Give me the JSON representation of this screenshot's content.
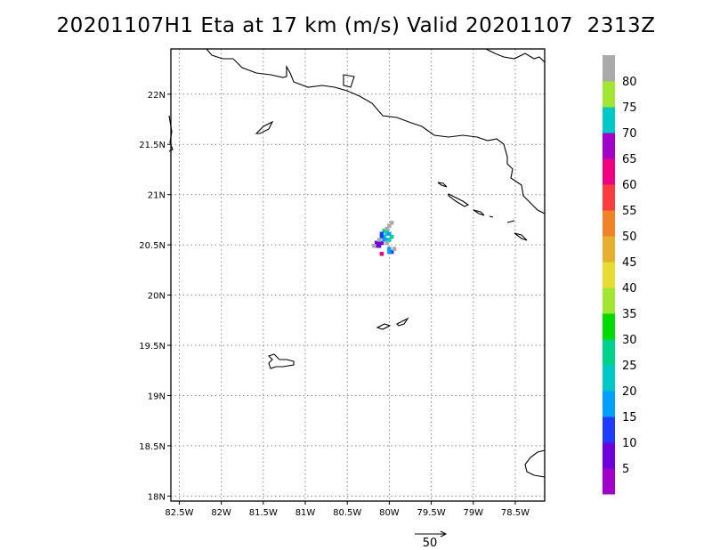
{
  "title": "20201107H1 Eta at 17 km (m/s) Valid 20201107  2313Z",
  "map": {
    "lon_range": [
      -82.6,
      -78.15
    ],
    "lat_range": [
      17.95,
      22.45
    ],
    "lon_ticks": [
      {
        "value": -82.5,
        "label": "82.5W"
      },
      {
        "value": -82.0,
        "label": "82W"
      },
      {
        "value": -81.5,
        "label": "81.5W"
      },
      {
        "value": -81.0,
        "label": "81W"
      },
      {
        "value": -80.5,
        "label": "80.5W"
      },
      {
        "value": -80.0,
        "label": "80W"
      },
      {
        "value": -79.5,
        "label": "79.5W"
      },
      {
        "value": -79.0,
        "label": "79W"
      },
      {
        "value": -78.5,
        "label": "78.5W"
      }
    ],
    "lat_ticks": [
      {
        "value": 18.0,
        "label": "18N"
      },
      {
        "value": 18.5,
        "label": "18.5N"
      },
      {
        "value": 19.0,
        "label": "19N"
      },
      {
        "value": 19.5,
        "label": "19.5N"
      },
      {
        "value": 20.0,
        "label": "20N"
      },
      {
        "value": 20.5,
        "label": "20.5N"
      },
      {
        "value": 21.0,
        "label": "21N"
      },
      {
        "value": 21.5,
        "label": "21.5N"
      },
      {
        "value": 22.0,
        "label": "22N"
      }
    ],
    "grid": "dotted",
    "coastline_color": "#000000"
  },
  "colorbar": {
    "orientation": "vertical",
    "placement": "right",
    "segments": [
      {
        "from": 0,
        "to": 5,
        "color": "#a000c8"
      },
      {
        "from": 5,
        "to": 10,
        "color": "#6e00dc"
      },
      {
        "from": 10,
        "to": 15,
        "color": "#1e3cff"
      },
      {
        "from": 15,
        "to": 20,
        "color": "#00a0ff"
      },
      {
        "from": 20,
        "to": 25,
        "color": "#00c8c8"
      },
      {
        "from": 25,
        "to": 30,
        "color": "#00d28c"
      },
      {
        "from": 30,
        "to": 35,
        "color": "#00dc00"
      },
      {
        "from": 35,
        "to": 40,
        "color": "#a0e632"
      },
      {
        "from": 40,
        "to": 45,
        "color": "#e6dc32"
      },
      {
        "from": 45,
        "to": 50,
        "color": "#e6af2d"
      },
      {
        "from": 50,
        "to": 55,
        "color": "#f08228"
      },
      {
        "from": 55,
        "to": 60,
        "color": "#fa3c3c"
      },
      {
        "from": 60,
        "to": 65,
        "color": "#f00082"
      },
      {
        "from": 65,
        "to": 70,
        "color": "#a000c8"
      },
      {
        "from": 70,
        "to": 75,
        "color": "#00c8c8"
      },
      {
        "from": 75,
        "to": 80,
        "color": "#a0e632"
      },
      {
        "from": 80,
        "to": 85,
        "color": "#aaaaaa"
      }
    ],
    "labels": [
      "5",
      "10",
      "15",
      "20",
      "25",
      "30",
      "35",
      "40",
      "45",
      "50",
      "55",
      "60",
      "65",
      "70",
      "75",
      "80"
    ]
  },
  "wind_cells": [
    {
      "lon": -80.12,
      "lat": 20.52,
      "value": 7
    },
    {
      "lon": -80.09,
      "lat": 20.52,
      "value": 7
    },
    {
      "lon": -80.12,
      "lat": 20.49,
      "value": 7
    },
    {
      "lon": -80.15,
      "lat": 20.49,
      "value": 7
    },
    {
      "lon": -80.15,
      "lat": 20.52,
      "value": 7
    },
    {
      "lon": -80.06,
      "lat": 20.58,
      "value": 22
    },
    {
      "lon": -80.03,
      "lat": 20.61,
      "value": 22
    },
    {
      "lon": -80.06,
      "lat": 20.64,
      "value": 27
    },
    {
      "lon": -80.03,
      "lat": 20.64,
      "value": 27
    },
    {
      "lon": -80.0,
      "lat": 20.61,
      "value": 17
    },
    {
      "lon": -80.09,
      "lat": 20.58,
      "value": 12
    },
    {
      "lon": -80.09,
      "lat": 20.61,
      "value": 12
    },
    {
      "lon": -80.06,
      "lat": 20.55,
      "value": 17
    },
    {
      "lon": -80.03,
      "lat": 20.55,
      "value": 17
    },
    {
      "lon": -80.0,
      "lat": 20.55,
      "value": 22
    },
    {
      "lon": -79.97,
      "lat": 20.58,
      "value": 27
    },
    {
      "lon": -80.0,
      "lat": 20.46,
      "value": 17
    },
    {
      "lon": -79.97,
      "lat": 20.43,
      "value": 12
    },
    {
      "lon": -80.0,
      "lat": 20.43,
      "value": 17
    },
    {
      "lon": -80.09,
      "lat": 20.41,
      "value": 62
    },
    {
      "lon": -80.03,
      "lat": 20.66,
      "value": 82
    },
    {
      "lon": -80.0,
      "lat": 20.69,
      "value": 82
    },
    {
      "lon": -79.97,
      "lat": 20.72,
      "value": 82
    },
    {
      "lon": -80.12,
      "lat": 20.55,
      "value": 82
    },
    {
      "lon": -80.18,
      "lat": 20.49,
      "value": 82
    },
    {
      "lon": -79.94,
      "lat": 20.46,
      "value": 82
    },
    {
      "lon": -80.03,
      "lat": 20.52,
      "value": 82
    }
  ],
  "reference_vector": {
    "label": "50"
  }
}
